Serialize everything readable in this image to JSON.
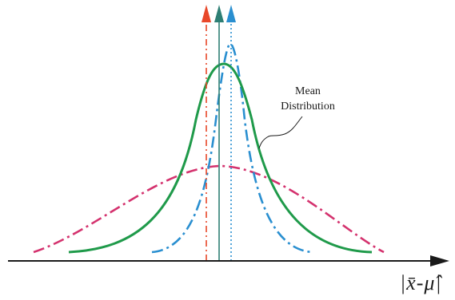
{
  "labels": {
    "mean_line1": "Mean",
    "mean_line2": "Distribution",
    "axis": "|x̄-μ̂|"
  },
  "colors": {
    "green": "#1f9a4a",
    "blue": "#2a8fd0",
    "pink": "#d4326e",
    "orange_red": "#e8482a",
    "teal": "#2e7f74",
    "axis": "#1a1a1a"
  },
  "curves": [
    {
      "id": "mean-distribution",
      "style": "solid",
      "color_key": "green"
    },
    {
      "id": "narrow-distribution",
      "style": "dash-dot",
      "color_key": "blue"
    },
    {
      "id": "wide-distribution",
      "style": "dash-dot",
      "color_key": "pink"
    }
  ],
  "vertical_arrows": [
    {
      "id": "orange-red",
      "style": "dash-dot",
      "color_key": "orange_red"
    },
    {
      "id": "teal",
      "style": "solid",
      "color_key": "teal"
    },
    {
      "id": "blue",
      "style": "dotted",
      "color_key": "blue"
    }
  ]
}
